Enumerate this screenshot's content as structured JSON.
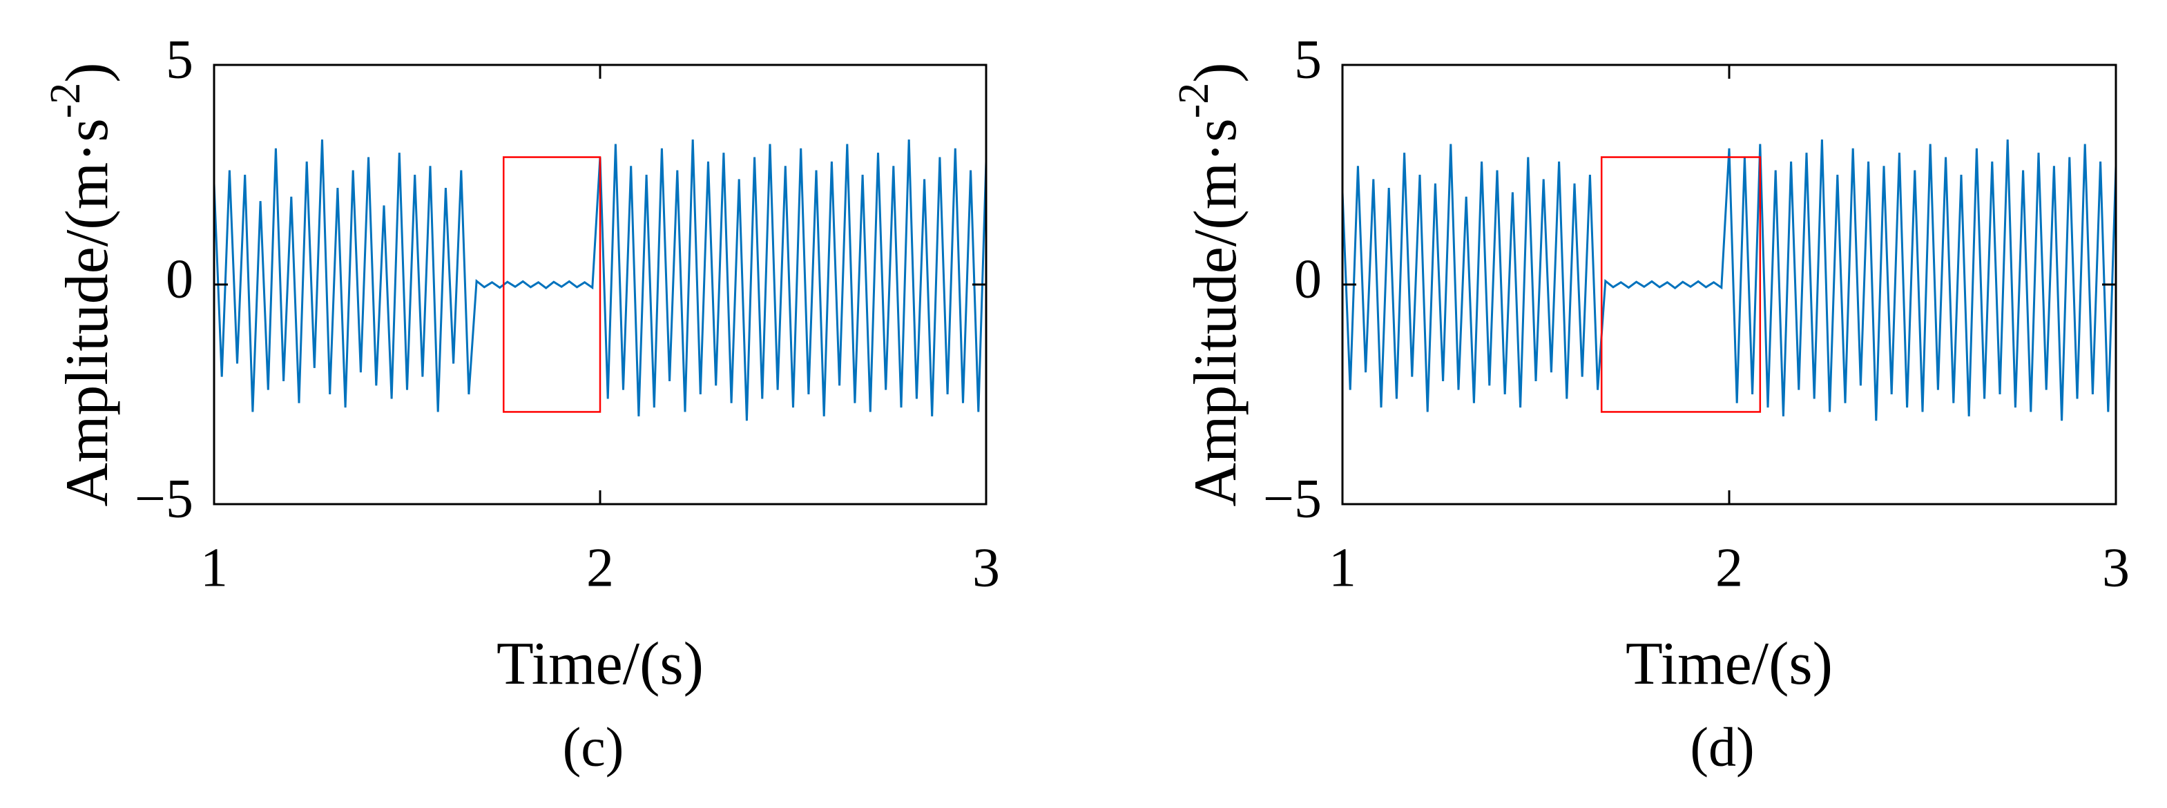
{
  "chart_data": [
    {
      "type": "line",
      "caption": "(c)",
      "xlabel": "Time/(s)",
      "ylabel": "Amplitude/(m·s",
      "ylabel_sup": "-2",
      "ylabel_end": ")",
      "color": "#0072bd",
      "x": [
        1,
        1.02,
        1.04,
        1.06,
        1.08,
        1.1,
        1.12,
        1.14,
        1.16,
        1.18,
        1.2,
        1.22,
        1.24,
        1.26,
        1.28,
        1.3,
        1.32,
        1.34,
        1.36,
        1.38,
        1.4,
        1.42,
        1.44,
        1.46,
        1.48,
        1.5,
        1.52,
        1.54,
        1.56,
        1.58,
        1.6,
        1.62,
        1.64,
        1.66,
        1.68,
        1.7,
        1.72,
        1.74,
        1.76,
        1.78,
        1.8,
        1.82,
        1.84,
        1.86,
        1.88,
        1.9,
        1.92,
        1.94,
        1.96,
        1.98,
        2,
        2.02,
        2.04,
        2.06,
        2.08,
        2.1,
        2.12,
        2.14,
        2.16,
        2.18,
        2.2,
        2.22,
        2.24,
        2.26,
        2.28,
        2.3,
        2.32,
        2.34,
        2.36,
        2.38,
        2.4,
        2.42,
        2.44,
        2.46,
        2.48,
        2.5,
        2.52,
        2.54,
        2.56,
        2.58,
        2.6,
        2.62,
        2.64,
        2.66,
        2.68,
        2.7,
        2.72,
        2.74,
        2.76,
        2.78,
        2.8,
        2.82,
        2.84,
        2.86,
        2.88,
        2.9,
        2.92,
        2.94,
        2.96,
        2.98,
        3
      ],
      "values": [
        2.3,
        -2.1,
        2.6,
        -1.8,
        2.5,
        -2.9,
        1.9,
        -2.4,
        3.1,
        -2.2,
        2.0,
        -2.7,
        2.8,
        -1.9,
        3.3,
        -2.5,
        2.2,
        -2.8,
        2.6,
        -2.0,
        2.9,
        -2.3,
        1.8,
        -2.6,
        3.0,
        -2.4,
        2.5,
        -2.1,
        2.7,
        -2.9,
        2.2,
        -1.8,
        2.6,
        -2.5,
        0.08,
        -0.06,
        0.05,
        -0.07,
        0.06,
        -0.05,
        0.07,
        -0.06,
        0.05,
        -0.08,
        0.06,
        -0.05,
        0.07,
        -0.06,
        0.05,
        -0.07,
        2.9,
        -2.6,
        3.2,
        -2.4,
        2.7,
        -3.0,
        2.5,
        -2.8,
        3.1,
        -2.2,
        2.6,
        -2.9,
        3.3,
        -2.5,
        2.8,
        -2.3,
        3.0,
        -2.7,
        2.4,
        -3.1,
        2.9,
        -2.6,
        3.2,
        -2.4,
        2.7,
        -2.8,
        3.1,
        -2.5,
        2.6,
        -3.0,
        2.8,
        -2.3,
        3.2,
        -2.7,
        2.5,
        -2.9,
        3.0,
        -2.4,
        2.7,
        -2.8,
        3.3,
        -2.6,
        2.4,
        -3.0,
        2.9,
        -2.5,
        3.1,
        -2.7,
        2.6,
        -2.9,
        2.8
      ],
      "box": {
        "x": [
          1.75,
          2.0
        ],
        "y": [
          -2.9,
          2.9
        ],
        "color": "#ff0000"
      },
      "xlim": [
        1,
        3
      ],
      "xticks": [
        1,
        2,
        3
      ],
      "ylim": [
        -5,
        5
      ],
      "yticks": [
        {
          "value": -5,
          "label": "−5"
        },
        0,
        5
      ]
    },
    {
      "type": "line",
      "caption": "(d)",
      "xlabel": "Time/(s)",
      "ylabel": "Amplitude/(m·s",
      "ylabel_sup": "-2",
      "ylabel_end": ")",
      "color": "#0072bd",
      "x": [
        1,
        1.02,
        1.04,
        1.06,
        1.08,
        1.1,
        1.12,
        1.14,
        1.16,
        1.18,
        1.2,
        1.22,
        1.24,
        1.26,
        1.28,
        1.3,
        1.32,
        1.34,
        1.36,
        1.38,
        1.4,
        1.42,
        1.44,
        1.46,
        1.48,
        1.5,
        1.52,
        1.54,
        1.56,
        1.58,
        1.6,
        1.62,
        1.64,
        1.66,
        1.68,
        1.7,
        1.72,
        1.74,
        1.76,
        1.78,
        1.8,
        1.82,
        1.84,
        1.86,
        1.88,
        1.9,
        1.92,
        1.94,
        1.96,
        1.98,
        2,
        2.02,
        2.04,
        2.06,
        2.08,
        2.1,
        2.12,
        2.14,
        2.16,
        2.18,
        2.2,
        2.22,
        2.24,
        2.26,
        2.28,
        2.3,
        2.32,
        2.34,
        2.36,
        2.38,
        2.4,
        2.42,
        2.44,
        2.46,
        2.48,
        2.5,
        2.52,
        2.54,
        2.56,
        2.58,
        2.6,
        2.62,
        2.64,
        2.66,
        2.68,
        2.7,
        2.72,
        2.74,
        2.76,
        2.78,
        2.8,
        2.82,
        2.84,
        2.86,
        2.88,
        2.9,
        2.92,
        2.94,
        2.96,
        2.98,
        3
      ],
      "values": [
        2.1,
        -2.4,
        2.7,
        -2.0,
        2.4,
        -2.8,
        2.2,
        -2.6,
        3.0,
        -2.1,
        2.5,
        -2.9,
        2.3,
        -2.2,
        3.2,
        -2.4,
        2.0,
        -2.7,
        2.8,
        -2.3,
        2.6,
        -2.5,
        2.1,
        -2.8,
        2.9,
        -2.2,
        2.4,
        -2.0,
        2.8,
        -2.6,
        2.3,
        -2.1,
        2.5,
        -2.4,
        0.08,
        -0.06,
        0.05,
        -0.07,
        0.06,
        -0.05,
        0.07,
        -0.06,
        0.05,
        -0.08,
        0.06,
        -0.05,
        0.07,
        -0.06,
        0.05,
        -0.07,
        3.1,
        -2.7,
        2.9,
        -2.5,
        3.2,
        -2.8,
        2.6,
        -3.0,
        2.8,
        -2.4,
        3.0,
        -2.6,
        3.3,
        -2.9,
        2.5,
        -2.7,
        3.1,
        -2.3,
        2.8,
        -3.1,
        2.7,
        -2.5,
        3.0,
        -2.8,
        2.6,
        -2.9,
        3.2,
        -2.4,
        2.9,
        -2.7,
        2.5,
        -3.0,
        3.1,
        -2.6,
        2.8,
        -2.5,
        3.3,
        -2.8,
        2.6,
        -2.9,
        3.0,
        -2.4,
        2.7,
        -3.1,
        2.9,
        -2.6,
        3.2,
        -2.5,
        2.8,
        -2.9,
        2.7
      ],
      "box": {
        "x": [
          1.67,
          2.08
        ],
        "y": [
          -2.9,
          2.9
        ],
        "color": "#ff0000"
      },
      "xlim": [
        1,
        3
      ],
      "xticks": [
        1,
        2,
        3
      ],
      "ylim": [
        -5,
        5
      ],
      "yticks": [
        {
          "value": -5,
          "label": "−5"
        },
        0,
        5
      ]
    }
  ]
}
